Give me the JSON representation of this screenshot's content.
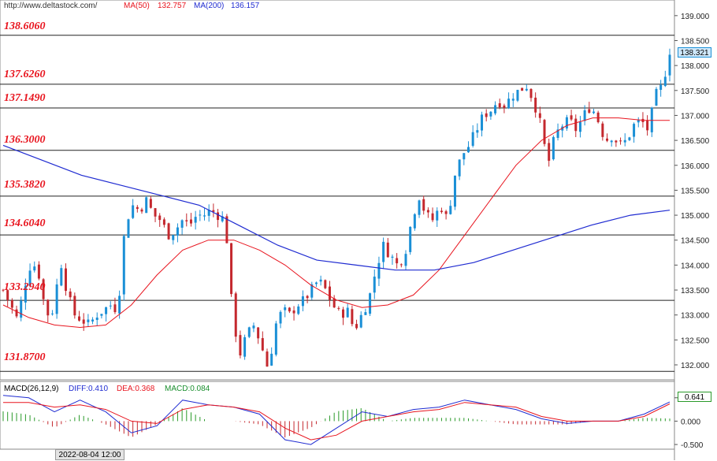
{
  "header": {
    "site": "http://www.deltastock.com/",
    "ma50_label": "MA(50)",
    "ma50_value": "132.757",
    "ma200_label": "MA(200)",
    "ma200_value": "136.157"
  },
  "levels": [
    "138.6060",
    "137.6260",
    "137.1490",
    "136.3000",
    "135.3820",
    "134.6040",
    "133.2940",
    "131.8700"
  ],
  "current_price": "138.321",
  "macd_header": {
    "title": "MACD(26,12,9)",
    "diff": "DIFF:0.410",
    "dea": "DEA:0.368",
    "macd": "MACD:0.084"
  },
  "macd_current": "0.641",
  "date_label": "2022-08-04 12:00",
  "colors": {
    "up": "#1a8fd6",
    "down": "#c4282e",
    "ma50": "#e8141e",
    "ma200": "#1f2bd1",
    "level": "#e8141e"
  },
  "chart_data": [
    {
      "type": "candlestick",
      "title": "",
      "ylim": [
        131.7,
        139.25
      ],
      "yticks": [
        "139.000",
        "138.500",
        "138.000",
        "137.500",
        "137.000",
        "136.500",
        "136.000",
        "135.500",
        "135.000",
        "134.500",
        "134.000",
        "133.500",
        "133.000",
        "132.500",
        "132.000"
      ],
      "horizontal_levels": [
        138.606,
        137.626,
        137.149,
        136.3,
        135.382,
        134.604,
        133.294,
        131.87
      ],
      "approx_close_path": [
        133.5,
        133.2,
        132.9,
        133.6,
        134.1,
        133.8,
        133.0,
        133.1,
        134.1,
        133.4,
        133.0,
        132.9,
        132.8,
        133.0,
        133.1,
        133.2,
        133.1,
        134.8,
        135.2,
        135.1,
        135.3,
        135.0,
        134.9,
        134.6,
        134.7,
        134.9,
        134.8,
        135.0,
        135.0,
        135.1,
        135.0,
        134.9,
        133.0,
        132.2,
        132.6,
        132.8,
        132.4,
        131.9,
        132.8,
        133.1,
        133.0,
        133.2,
        133.3,
        133.5,
        133.7,
        133.5,
        133.2,
        133.0,
        133.1,
        132.7,
        133.0,
        133.3,
        133.9,
        134.4,
        134.2,
        134.0,
        134.2,
        134.9,
        135.4,
        135.0,
        134.9,
        135.2,
        134.9,
        135.8,
        136.2,
        136.4,
        136.7,
        137.0,
        137.1,
        137.3,
        137.2,
        137.4,
        137.5,
        137.6,
        137.3,
        136.8,
        136.0,
        136.6,
        136.8,
        136.9,
        136.7,
        137.0,
        137.2,
        136.9,
        136.5,
        136.6,
        136.4,
        136.5,
        136.8,
        136.9,
        136.7,
        137.4,
        137.6,
        138.3
      ]
    },
    {
      "type": "line",
      "series": [
        {
          "name": "MA(50)",
          "values": [
            133.2,
            132.95,
            132.8,
            132.75,
            132.8,
            133.2,
            133.8,
            134.3,
            134.5,
            134.5,
            134.3,
            134.0,
            133.6,
            133.3,
            133.15,
            133.2,
            133.4,
            133.9,
            134.6,
            135.3,
            136.0,
            136.5,
            136.8,
            136.95,
            136.95,
            136.9,
            136.9
          ]
        },
        {
          "name": "MA(200)",
          "values": [
            136.4,
            136.1,
            135.8,
            135.6,
            135.4,
            135.2,
            134.8,
            134.4,
            134.1,
            134.0,
            133.9,
            133.9,
            134.05,
            134.3,
            134.55,
            134.8,
            135.0,
            135.1
          ]
        }
      ]
    },
    {
      "type": "bar",
      "title": "",
      "ylim": [
        -0.6,
        0.85
      ],
      "yticks": [
        "0.500",
        "0.000",
        "-0.500"
      ],
      "series": [
        {
          "name": "DIFF:0.410",
          "values": [
            0.55,
            0.5,
            0.2,
            0.45,
            0.2,
            -0.25,
            -0.1,
            0.45,
            0.35,
            0.3,
            0.15,
            -0.4,
            -0.5,
            -0.15,
            0.2,
            0.1,
            0.25,
            0.3,
            0.45,
            0.35,
            0.25,
            0.05,
            -0.05,
            0.0,
            0.0,
            0.15,
            0.41
          ]
        },
        {
          "name": "DEA:0.368",
          "values": [
            0.4,
            0.4,
            0.3,
            0.35,
            0.25,
            0.0,
            -0.05,
            0.25,
            0.35,
            0.3,
            0.2,
            -0.15,
            -0.4,
            -0.3,
            0.0,
            0.1,
            0.2,
            0.25,
            0.4,
            0.35,
            0.3,
            0.1,
            0.0,
            0.0,
            0.0,
            0.1,
            0.37
          ]
        }
      ]
    }
  ]
}
